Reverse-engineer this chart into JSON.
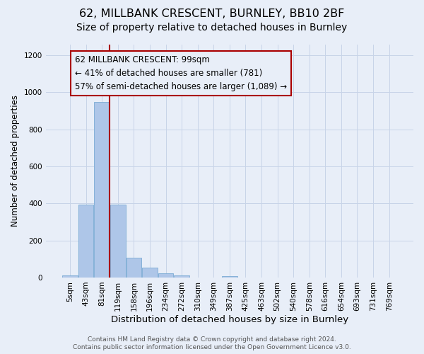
{
  "title": "62, MILLBANK CRESCENT, BURNLEY, BB10 2BF",
  "subtitle": "Size of property relative to detached houses in Burnley",
  "xlabel": "Distribution of detached houses by size in Burnley",
  "ylabel": "Number of detached properties",
  "bar_labels": [
    "5sqm",
    "43sqm",
    "81sqm",
    "119sqm",
    "158sqm",
    "196sqm",
    "234sqm",
    "272sqm",
    "310sqm",
    "349sqm",
    "387sqm",
    "425sqm",
    "463sqm",
    "502sqm",
    "540sqm",
    "578sqm",
    "616sqm",
    "654sqm",
    "693sqm",
    "731sqm",
    "769sqm"
  ],
  "bar_values": [
    10,
    393,
    950,
    393,
    107,
    52,
    22,
    10,
    0,
    0,
    8,
    0,
    0,
    0,
    0,
    0,
    0,
    0,
    0,
    0,
    0
  ],
  "bar_color": "#aec6e8",
  "bar_edge_color": "#7aabd4",
  "bar_width": 0.95,
  "property_line_x": 2.5,
  "property_line_color": "#aa0000",
  "annotation_line1": "62 MILLBANK CRESCENT: 99sqm",
  "annotation_line2": "← 41% of detached houses are smaller (781)",
  "annotation_line3": "57% of semi-detached houses are larger (1,089) →",
  "ylim": [
    0,
    1260
  ],
  "yticks": [
    0,
    200,
    400,
    600,
    800,
    1000,
    1200
  ],
  "grid_color": "#c8d4e8",
  "background_color": "#e8eef8",
  "footer_line1": "Contains HM Land Registry data © Crown copyright and database right 2024.",
  "footer_line2": "Contains public sector information licensed under the Open Government Licence v3.0.",
  "title_fontsize": 11.5,
  "subtitle_fontsize": 10,
  "xlabel_fontsize": 9.5,
  "ylabel_fontsize": 8.5,
  "tick_fontsize": 7.5,
  "annotation_fontsize": 8.5,
  "footer_fontsize": 6.5
}
